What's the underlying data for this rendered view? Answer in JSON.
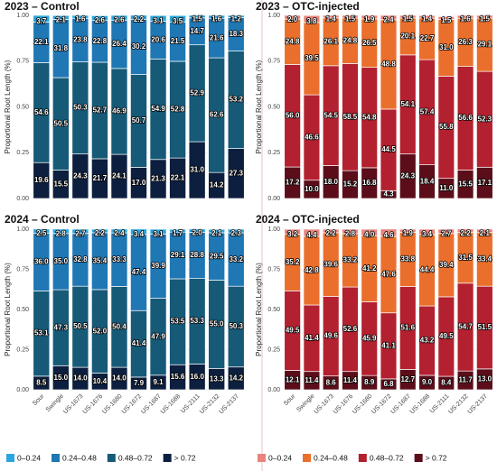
{
  "chart_data": [
    {
      "type": "bar",
      "stacked": true,
      "title": "2023 – Control",
      "ylabel": "Proportional Root Length (%)",
      "ylim": [
        0,
        1
      ],
      "yticks": [
        {
          "value": 0,
          "label": "0.00"
        },
        {
          "value": 0.25,
          "label": "0.25"
        },
        {
          "value": 0.5,
          "label": "0.50"
        },
        {
          "value": 0.75,
          "label": "0.75"
        },
        {
          "value": 1,
          "label": "1.00"
        }
      ],
      "series": [
        {
          "color": "#2aa7dc",
          "values": [
            0.037,
            0.021,
            0.016,
            0.026,
            0.026,
            0.022,
            0.031,
            0.035,
            0.015,
            0.016,
            0.012
          ],
          "value_labels": [
            "3.7",
            "2.1",
            "1.6",
            "2.6",
            "2.6",
            "2.2",
            "3.1",
            "3.5",
            "1.5",
            "1.6",
            "1.2"
          ]
        },
        {
          "color": "#1f77b4",
          "values": [
            0.221,
            0.318,
            0.238,
            0.228,
            0.264,
            0.302,
            0.206,
            0.215,
            0.147,
            0.216,
            0.183
          ],
          "value_labels": [
            "22.1",
            "31.8",
            "23.8",
            "22.8",
            "26.4",
            "30.2",
            "20.6",
            "21.5",
            "14.7",
            "21.6",
            "18.3"
          ]
        },
        {
          "color": "#165a78",
          "values": [
            0.546,
            0.505,
            0.503,
            0.527,
            0.469,
            0.507,
            0.549,
            0.528,
            0.529,
            0.626,
            0.532
          ],
          "value_labels": [
            "54.6",
            "50.5",
            "50.3",
            "52.7",
            "46.9",
            "50.7",
            "54.9",
            "52.8",
            "52.9",
            "62.6",
            "53.2"
          ]
        },
        {
          "color": "#0c1f3f",
          "values": [
            0.196,
            0.155,
            0.243,
            0.217,
            0.241,
            0.17,
            0.213,
            0.221,
            0.31,
            0.142,
            0.273
          ],
          "value_labels": [
            "19.6",
            "15.5",
            "24.3",
            "21.7",
            "24.1",
            "17.0",
            "21.3",
            "22.1",
            "31.0",
            "14.2",
            "27.3"
          ]
        }
      ]
    },
    {
      "type": "bar",
      "stacked": true,
      "title": "2023 – OTC-injected",
      "ylabel": "Proportional Root Length (%)",
      "ylim": [
        0,
        1
      ],
      "yticks": [
        {
          "value": 0,
          "label": "0.00"
        },
        {
          "value": 0.25,
          "label": "0.25"
        },
        {
          "value": 0.5,
          "label": "0.50"
        },
        {
          "value": 0.75,
          "label": "0.75"
        },
        {
          "value": 1,
          "label": "1.00"
        }
      ],
      "series": [
        {
          "color": "#e8847c",
          "values": [
            0.02,
            0.038,
            0.014,
            0.015,
            0.019,
            0.024,
            0.015,
            0.014,
            0.015,
            0.016,
            0.015
          ],
          "value_labels": [
            "2.0",
            "3.8",
            "1.4",
            "1.5",
            "1.9",
            "2.4",
            "1.5",
            "1.4",
            "1.5",
            "1.6",
            "1.5"
          ]
        },
        {
          "color": "#ea6f2c",
          "values": [
            0.248,
            0.395,
            0.261,
            0.248,
            0.265,
            0.488,
            0.201,
            0.227,
            0.31,
            0.263,
            0.291
          ],
          "value_labels": [
            "24.8",
            "39.5",
            "26.1",
            "24.8",
            "26.5",
            "48.8",
            "20.1",
            "22.7",
            "31.0",
            "26.3",
            "29.1"
          ]
        },
        {
          "color": "#b3202f",
          "values": [
            0.56,
            0.466,
            0.545,
            0.585,
            0.548,
            0.445,
            0.541,
            0.574,
            0.558,
            0.566,
            0.523
          ],
          "value_labels": [
            "56.0",
            "46.6",
            "54.5",
            "58.5",
            "54.8",
            "44.5",
            "54.1",
            "57.4",
            "55.8",
            "56.6",
            "52.3"
          ]
        },
        {
          "color": "#5b0e1a",
          "values": [
            0.172,
            0.1,
            0.18,
            0.152,
            0.168,
            0.043,
            0.243,
            0.184,
            0.11,
            0.155,
            0.171
          ],
          "value_labels": [
            "17.2",
            "10.0",
            "18.0",
            "15.2",
            "16.8",
            "4.3",
            "24.3",
            "18.4",
            "11.0",
            "15.5",
            "17.1"
          ]
        }
      ]
    },
    {
      "type": "bar",
      "stacked": true,
      "title": "2024 – Control",
      "ylabel": "Proportional Root Length (%)",
      "categories": [
        "Sour",
        "Swingle",
        "US-1673",
        "US-1676",
        "US-1680",
        "US-1672",
        "US-1687",
        "US-1688",
        "US-2111",
        "US-2132",
        "US-2137"
      ],
      "ylim": [
        0,
        1
      ],
      "yticks": [
        {
          "value": 0,
          "label": "0.00"
        },
        {
          "value": 0.25,
          "label": "0.25"
        },
        {
          "value": 0.5,
          "label": "0.50"
        },
        {
          "value": 0.75,
          "label": "0.75"
        },
        {
          "value": 1,
          "label": "1.00"
        }
      ],
      "legend": true,
      "series": [
        {
          "name": "0–0.24",
          "color": "#2aa7dc",
          "values": [
            0.025,
            0.028,
            0.027,
            0.022,
            0.024,
            0.034,
            0.031,
            0.017,
            0.02,
            0.021,
            0.023
          ],
          "value_labels": [
            "2.5",
            "2.8",
            "2.7",
            "2.2",
            "2.4",
            "3.4",
            "3.1",
            "1.7",
            "2.0",
            "2.1",
            "2.3"
          ]
        },
        {
          "name": "0.24–0.48",
          "color": "#1f77b4",
          "values": [
            0.36,
            0.35,
            0.328,
            0.354,
            0.333,
            0.474,
            0.399,
            0.291,
            0.288,
            0.295,
            0.332
          ],
          "value_labels": [
            "36.0",
            "35.0",
            "32.8",
            "35.4",
            "33.3",
            "47.4",
            "39.9",
            "29.1",
            "28.8",
            "29.5",
            "33.2"
          ]
        },
        {
          "name": "0.48–0.72",
          "color": "#165a78",
          "values": [
            0.531,
            0.473,
            0.505,
            0.52,
            0.504,
            0.414,
            0.479,
            0.535,
            0.533,
            0.55,
            0.503
          ],
          "value_labels": [
            "53.1",
            "47.3",
            "50.5",
            "52.0",
            "50.4",
            "41.4",
            "47.9",
            "53.5",
            "53.3",
            "55.0",
            "50.3"
          ]
        },
        {
          "name": "> 0.72",
          "color": "#0c1f3f",
          "values": [
            0.085,
            0.15,
            0.14,
            0.104,
            0.14,
            0.079,
            0.091,
            0.156,
            0.16,
            0.133,
            0.142
          ],
          "value_labels": [
            "8.5",
            "15.0",
            "14.0",
            "10.4",
            "14.0",
            "7.9",
            "9.1",
            "15.6",
            "16.0",
            "13.3",
            "14.2"
          ]
        }
      ]
    },
    {
      "type": "bar",
      "stacked": true,
      "title": "2024 – OTC-injected",
      "ylabel": "Proportional Root Length (%)",
      "categories": [
        "Sour",
        "Swingle",
        "US-1673",
        "US-1676",
        "US-1680",
        "US-1672",
        "US-1687",
        "US-1688",
        "US-2111",
        "US-2132",
        "US-2137"
      ],
      "ylim": [
        0,
        1
      ],
      "yticks": [
        {
          "value": 0,
          "label": "0.00"
        },
        {
          "value": 0.25,
          "label": "0.25"
        },
        {
          "value": 0.5,
          "label": "0.50"
        },
        {
          "value": 0.75,
          "label": "0.75"
        },
        {
          "value": 1,
          "label": "1.00"
        }
      ],
      "legend": true,
      "series": [
        {
          "name": "0–0.24",
          "color": "#e8847c",
          "values": [
            0.032,
            0.044,
            0.022,
            0.028,
            0.04,
            0.046,
            0.019,
            0.034,
            0.027,
            0.022,
            0.021
          ],
          "value_labels": [
            "3.2",
            "4.4",
            "2.2",
            "2.8",
            "4.0",
            "4.6",
            "1.9",
            "3.4",
            "2.7",
            "2.2",
            "2.1"
          ]
        },
        {
          "name": "0.24–0.48",
          "color": "#ea6f2c",
          "values": [
            0.352,
            0.428,
            0.396,
            0.332,
            0.412,
            0.476,
            0.338,
            0.444,
            0.394,
            0.315,
            0.334
          ],
          "value_labels": [
            "35.2",
            "42.8",
            "39.6",
            "33.2",
            "41.2",
            "47.6",
            "33.8",
            "44.4",
            "39.4",
            "31.5",
            "33.4"
          ]
        },
        {
          "name": "0.48–0.72",
          "color": "#b3202f",
          "values": [
            0.495,
            0.414,
            0.496,
            0.526,
            0.459,
            0.411,
            0.516,
            0.432,
            0.495,
            0.547,
            0.515
          ],
          "value_labels": [
            "49.5",
            "41.4",
            "49.6",
            "52.6",
            "45.9",
            "41.1",
            "51.6",
            "43.2",
            "49.5",
            "54.7",
            "51.5"
          ]
        },
        {
          "name": "> 0.72",
          "color": "#5b0e1a",
          "values": [
            0.121,
            0.114,
            0.086,
            0.114,
            0.089,
            0.068,
            0.127,
            0.09,
            0.084,
            0.117,
            0.13
          ],
          "value_labels": [
            "12.1",
            "11.4",
            "8.6",
            "11.4",
            "8.9",
            "6.8",
            "12.7",
            "9.0",
            "8.4",
            "11.7",
            "13.0"
          ]
        }
      ]
    }
  ]
}
